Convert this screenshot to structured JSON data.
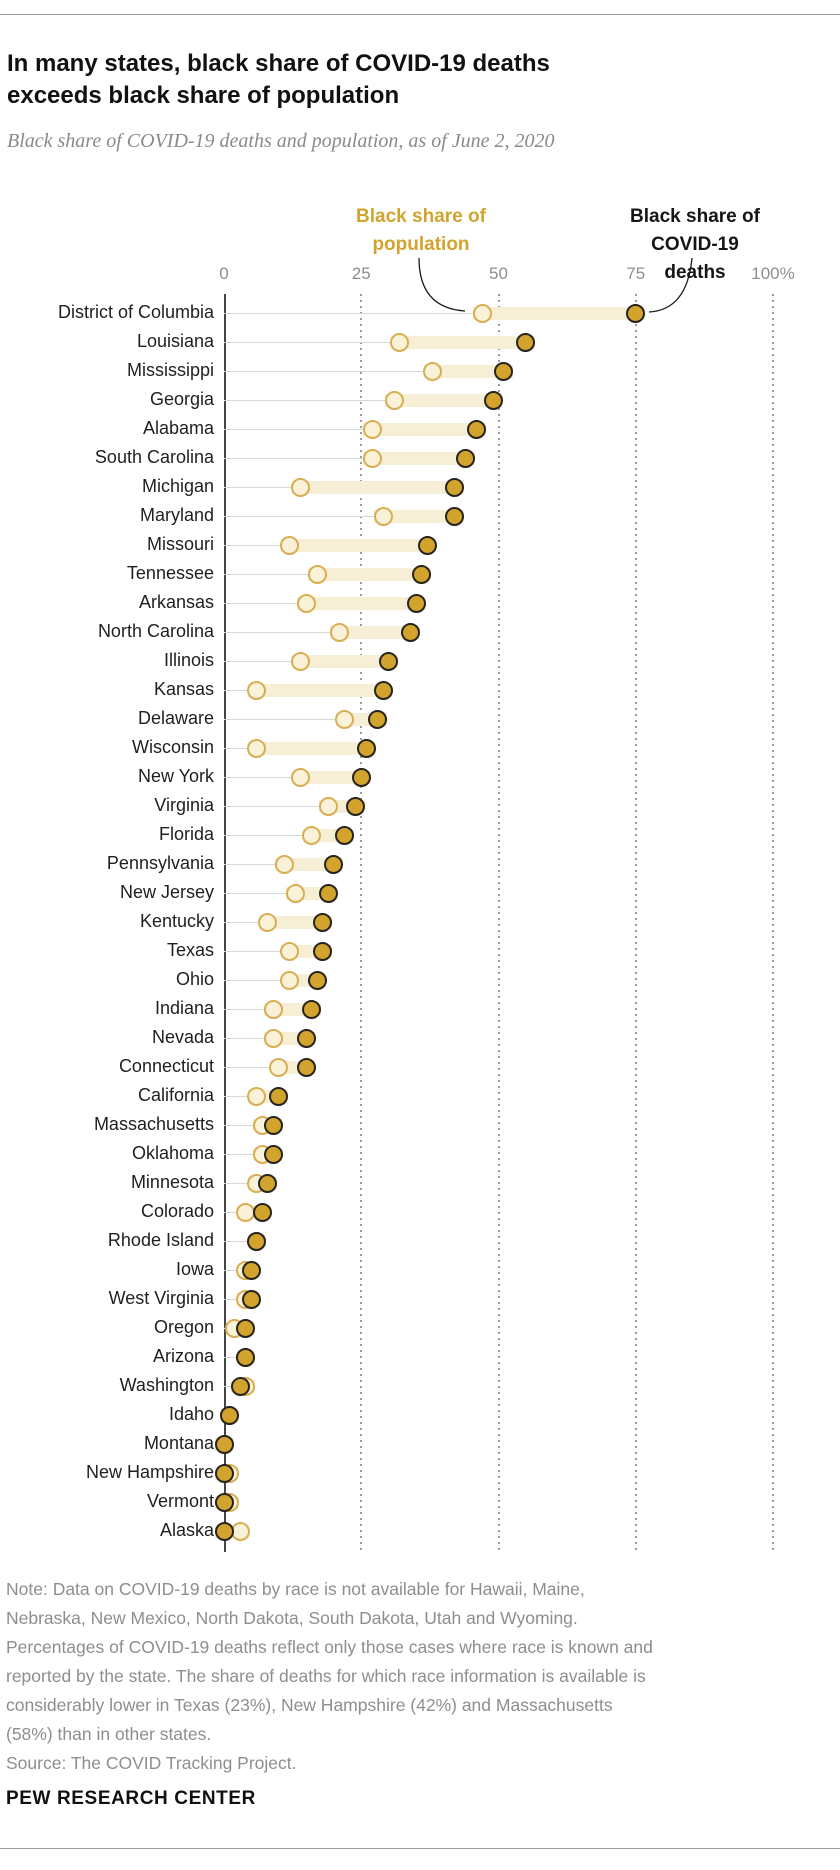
{
  "header": {
    "title": "In many states, black share of COVID-19 deaths\nexceeds black share of population",
    "subtitle": "Black share of COVID-19 deaths and population, as of June 2, 2020"
  },
  "legend": {
    "population_label": "Black share of\npopulation",
    "deaths_label": "Black share of\nCOVID-19 deaths"
  },
  "axis": {
    "ticks": [
      {
        "label": "0",
        "value": 0
      },
      {
        "label": "25",
        "value": 25
      },
      {
        "label": "50",
        "value": 50
      },
      {
        "label": "75",
        "value": 75
      },
      {
        "label": "100%",
        "value": 100
      }
    ]
  },
  "chart_data": {
    "type": "dumbbell",
    "title": "In many states, black share of COVID-19 deaths exceeds black share of population",
    "subtitle": "Black share of COVID-19 deaths and population, as of June 2, 2020",
    "xlim": [
      0,
      100
    ],
    "xticks": [
      0,
      25,
      50,
      75,
      100
    ],
    "grid": "vertical-dotted",
    "unit": "percent",
    "categories": [
      "District of Columbia",
      "Louisiana",
      "Mississippi",
      "Georgia",
      "Alabama",
      "South Carolina",
      "Michigan",
      "Maryland",
      "Missouri",
      "Tennessee",
      "Arkansas",
      "North Carolina",
      "Illinois",
      "Kansas",
      "Delaware",
      "Wisconsin",
      "New York",
      "Virginia",
      "Florida",
      "Pennsylvania",
      "New Jersey",
      "Kentucky",
      "Texas",
      "Ohio",
      "Indiana",
      "Nevada",
      "Connecticut",
      "California",
      "Massachusetts",
      "Oklahoma",
      "Minnesota",
      "Colorado",
      "Rhode Island",
      "Iowa",
      "West Virginia",
      "Oregon",
      "Arizona",
      "Washington",
      "Idaho",
      "Montana",
      "New Hampshire",
      "Vermont",
      "Alaska"
    ],
    "series": [
      {
        "name": "Black share of population",
        "values": [
          47,
          32,
          38,
          31,
          27,
          27,
          14,
          29,
          12,
          17,
          15,
          21,
          14,
          6,
          22,
          6,
          14,
          19,
          16,
          11,
          13,
          8,
          12,
          12,
          9,
          9,
          10,
          6,
          7,
          7,
          6,
          4,
          6,
          4,
          4,
          2,
          4,
          4,
          1,
          0,
          1,
          1,
          3
        ]
      },
      {
        "name": "Black share of COVID-19 deaths",
        "values": [
          75,
          55,
          51,
          49,
          46,
          44,
          42,
          42,
          37,
          36,
          35,
          34,
          30,
          29,
          28,
          26,
          25,
          24,
          22,
          20,
          19,
          18,
          18,
          17,
          16,
          15,
          15,
          10,
          9,
          9,
          8,
          7,
          6,
          5,
          5,
          4,
          4,
          3,
          1,
          0,
          0,
          0,
          0
        ]
      }
    ]
  },
  "note": {
    "text": "Note: Data on COVID-19 deaths by race is not available for Hawaii, Maine,\nNebraska, New Mexico, North Dakota, South Dakota, Utah and Wyoming.\nPercentages of COVID-19 deaths reflect only those cases where race is known and\nreported by the state. The share of deaths for which race information is available is\nconsiderably lower in Texas (23%), New Hampshire (42%) and Massachusetts\n(58%) than in other states.",
    "source": "Source: The COVID Tracking Project."
  },
  "footer": "PEW RESEARCH CENTER",
  "colors": {
    "population_dot_fill": "#faf2d8",
    "population_dot_stroke": "#d8ae52",
    "deaths_dot_fill": "#d2a42e",
    "deaths_dot_stroke": "#27241e",
    "band": "#f6eed5",
    "leader_line": "#d6d6d6",
    "gridline": "#9b9b9b",
    "axis_line": "#454545",
    "legend_population_text": "#d2a42e",
    "legend_deaths_text": "#151515",
    "subtitle_text": "#8a8a8a",
    "note_text": "#8e8e8e"
  }
}
